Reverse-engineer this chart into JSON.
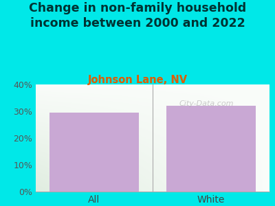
{
  "title": "Change in non-family household\nincome between 2000 and 2022",
  "subtitle": "Johnson Lane, NV",
  "categories": [
    "All",
    "White"
  ],
  "values": [
    29.5,
    32.0
  ],
  "bar_color": "#c9a8d4",
  "title_fontsize": 12.5,
  "subtitle_fontsize": 10.5,
  "subtitle_color": "#e05c00",
  "title_color": "#003333",
  "tick_label_color": "#444444",
  "ytick_label_color": "#555555",
  "ylim": [
    0,
    40
  ],
  "yticks": [
    0,
    10,
    20,
    30,
    40
  ],
  "ytick_labels": [
    "0%",
    "10%",
    "20%",
    "30%",
    "40%"
  ],
  "background_outer": "#00e8e8",
  "watermark": "City-Data.com",
  "plot_bg_color_topleft": "#e8f5e2",
  "plot_bg_color_bottomleft": "#c8e6b8",
  "plot_bg_color_right": "#f5f5ee"
}
